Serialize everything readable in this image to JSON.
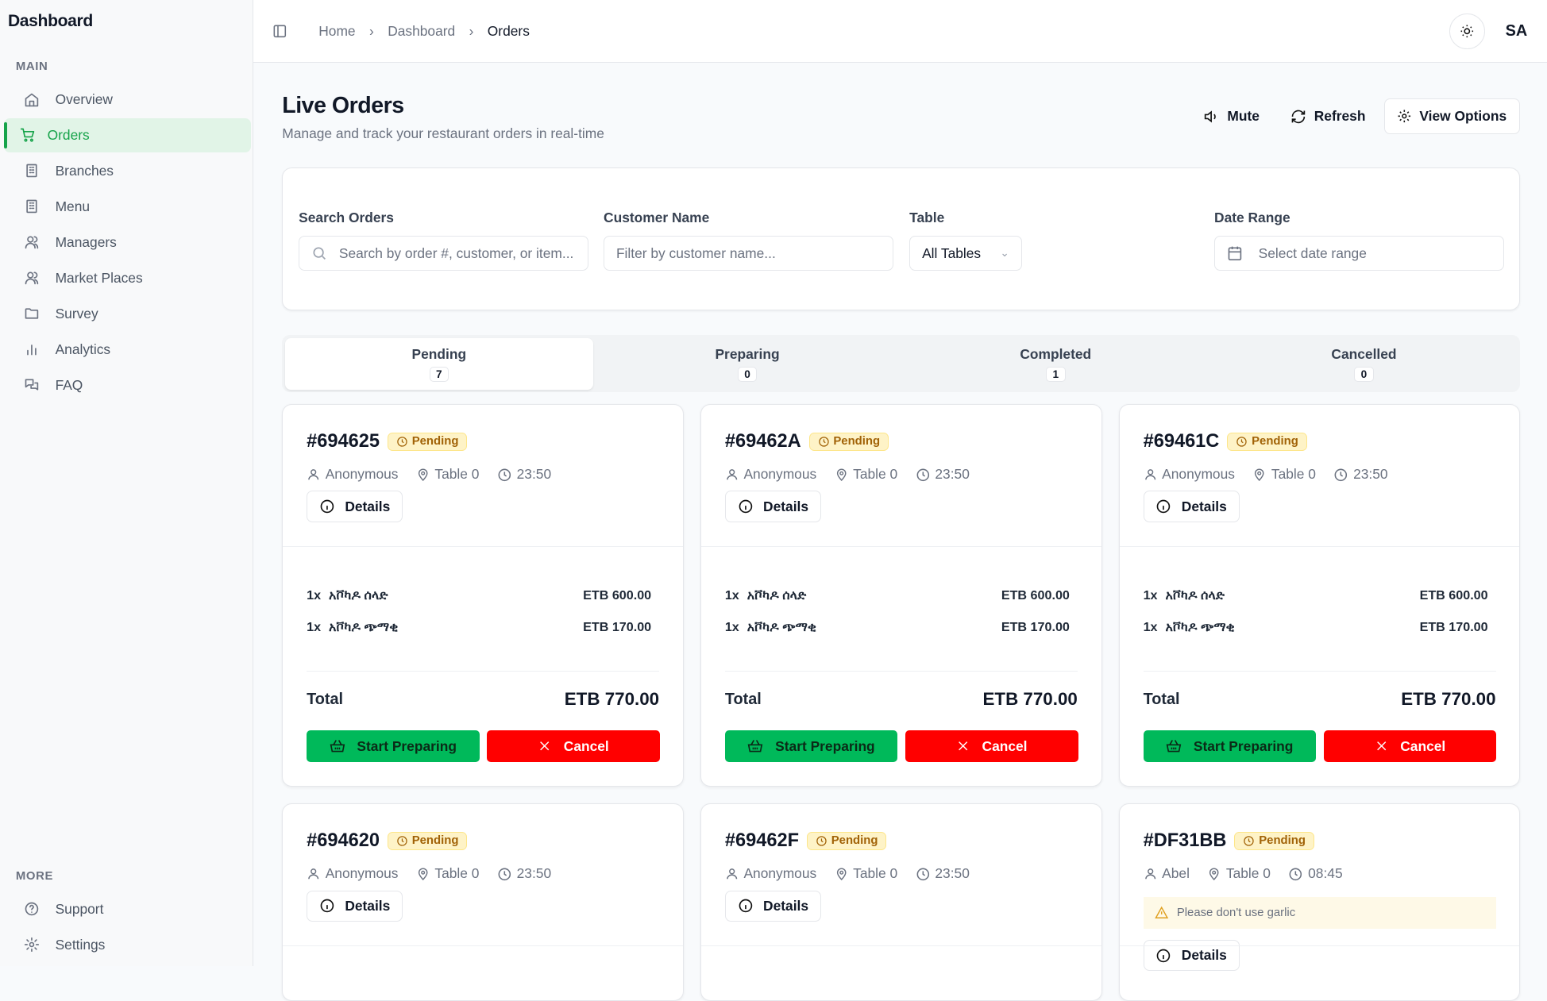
{
  "sidebar": {
    "title": "Dashboard",
    "main_label": "MAIN",
    "more_label": "MORE",
    "items": [
      {
        "label": "Overview",
        "icon": "home-icon"
      },
      {
        "label": "Orders",
        "icon": "cart-icon",
        "active": true
      },
      {
        "label": "Branches",
        "icon": "building-icon"
      },
      {
        "label": "Menu",
        "icon": "building-icon"
      },
      {
        "label": "Managers",
        "icon": "users-icon"
      },
      {
        "label": "Market Places",
        "icon": "users-icon"
      },
      {
        "label": "Survey",
        "icon": "folder-icon"
      },
      {
        "label": "Analytics",
        "icon": "bar-chart-icon"
      },
      {
        "label": "FAQ",
        "icon": "messages-icon"
      }
    ],
    "more_items": [
      {
        "label": "Support",
        "icon": "help-circle-icon"
      },
      {
        "label": "Settings",
        "icon": "gear-icon"
      }
    ]
  },
  "header": {
    "breadcrumbs": [
      "Home",
      "Dashboard",
      "Orders"
    ],
    "avatar": "SA"
  },
  "page": {
    "title": "Live Orders",
    "subtitle": "Manage and track your restaurant orders in real-time",
    "mute": "Mute",
    "refresh": "Refresh",
    "view_options": "View Options"
  },
  "filters": {
    "search_label": "Search Orders",
    "search_placeholder": "Search by order #, customer, or item...",
    "customer_label": "Customer Name",
    "customer_placeholder": "Filter by customer name...",
    "table_label": "Table",
    "table_value": "All Tables",
    "date_label": "Date Range",
    "date_placeholder": "Select date range"
  },
  "tabs": [
    {
      "label": "Pending",
      "count": "7"
    },
    {
      "label": "Preparing",
      "count": "0"
    },
    {
      "label": "Completed",
      "count": "1"
    },
    {
      "label": "Cancelled",
      "count": "0"
    }
  ],
  "labels": {
    "details": "Details",
    "total": "Total",
    "start": "Start Preparing",
    "cancel": "Cancel"
  },
  "colors": {
    "accent": "#16a34a",
    "start": "#00b95a",
    "cancel": "#ff0000",
    "pending_bg": "#fef3c7"
  },
  "orders": [
    {
      "id": "#694625",
      "status": "Pending",
      "customer": "Anonymous",
      "table": "Table 0",
      "time": "23:50",
      "items": [
        {
          "qty": "1x",
          "name": "አቮካዶ ሰላድ",
          "price": "ETB 600.00"
        },
        {
          "qty": "1x",
          "name": "አቮካዶ ጭማቂ",
          "price": "ETB 170.00"
        }
      ],
      "total": "ETB 770.00"
    },
    {
      "id": "#69462A",
      "status": "Pending",
      "customer": "Anonymous",
      "table": "Table 0",
      "time": "23:50",
      "items": [
        {
          "qty": "1x",
          "name": "አቮካዶ ሰላድ",
          "price": "ETB 600.00"
        },
        {
          "qty": "1x",
          "name": "አቮካዶ ጭማቂ",
          "price": "ETB 170.00"
        }
      ],
      "total": "ETB 770.00"
    },
    {
      "id": "#69461C",
      "status": "Pending",
      "customer": "Anonymous",
      "table": "Table 0",
      "time": "23:50",
      "items": [
        {
          "qty": "1x",
          "name": "አቮካዶ ሰላድ",
          "price": "ETB 600.00"
        },
        {
          "qty": "1x",
          "name": "አቮካዶ ጭማቂ",
          "price": "ETB 170.00"
        }
      ],
      "total": "ETB 770.00"
    },
    {
      "id": "#694620",
      "status": "Pending",
      "customer": "Anonymous",
      "table": "Table 0",
      "time": "23:50"
    },
    {
      "id": "#69462F",
      "status": "Pending",
      "customer": "Anonymous",
      "table": "Table 0",
      "time": "23:50"
    },
    {
      "id": "#DF31BB",
      "status": "Pending",
      "customer": "Abel",
      "table": "Table 0",
      "time": "08:45",
      "note": "Please don't use garlic"
    }
  ]
}
